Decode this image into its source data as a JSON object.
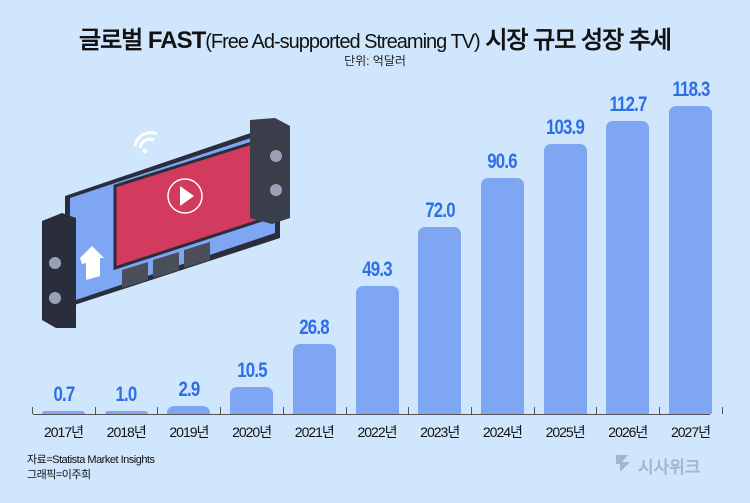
{
  "header": {
    "title_main_a": "글로벌 FAST",
    "title_paren": "(Free Ad-supported Streaming TV)",
    "title_main_b": " 시장 규모 성장 추세",
    "unit": "단위: 억달러"
  },
  "footer": {
    "source": "자료=Statista Market Insights",
    "graphic": "그래픽=이주희",
    "logo_text": "시사위크"
  },
  "colors": {
    "background": "#cfe6fc",
    "bar": "#7fa6f2",
    "value_label": "#2e6ee6"
  },
  "chart_data": {
    "type": "bar",
    "title": "글로벌 FAST(Free Ad-supported Streaming TV) 시장 규모 성장 추세",
    "subtitle": "단위: 억달러",
    "xlabel": "",
    "ylabel": "억달러",
    "categories": [
      "2017년",
      "2018년",
      "2019년",
      "2020년",
      "2021년",
      "2022년",
      "2023년",
      "2024년",
      "2025년",
      "2026년",
      "2027년"
    ],
    "values": [
      0.7,
      1.0,
      2.9,
      10.5,
      26.8,
      49.3,
      72.0,
      90.6,
      103.9,
      112.7,
      118.3
    ],
    "value_labels": [
      "0.7",
      "1.0",
      "2.9",
      "10.5",
      "26.8",
      "49.3",
      "72.0",
      "90.6",
      "103.9",
      "112.7",
      "118.3"
    ],
    "ylim": [
      0,
      120
    ],
    "grid": false,
    "legend": null,
    "annotations": [
      "자료=Statista Market Insights",
      "그래픽=이주희"
    ]
  }
}
